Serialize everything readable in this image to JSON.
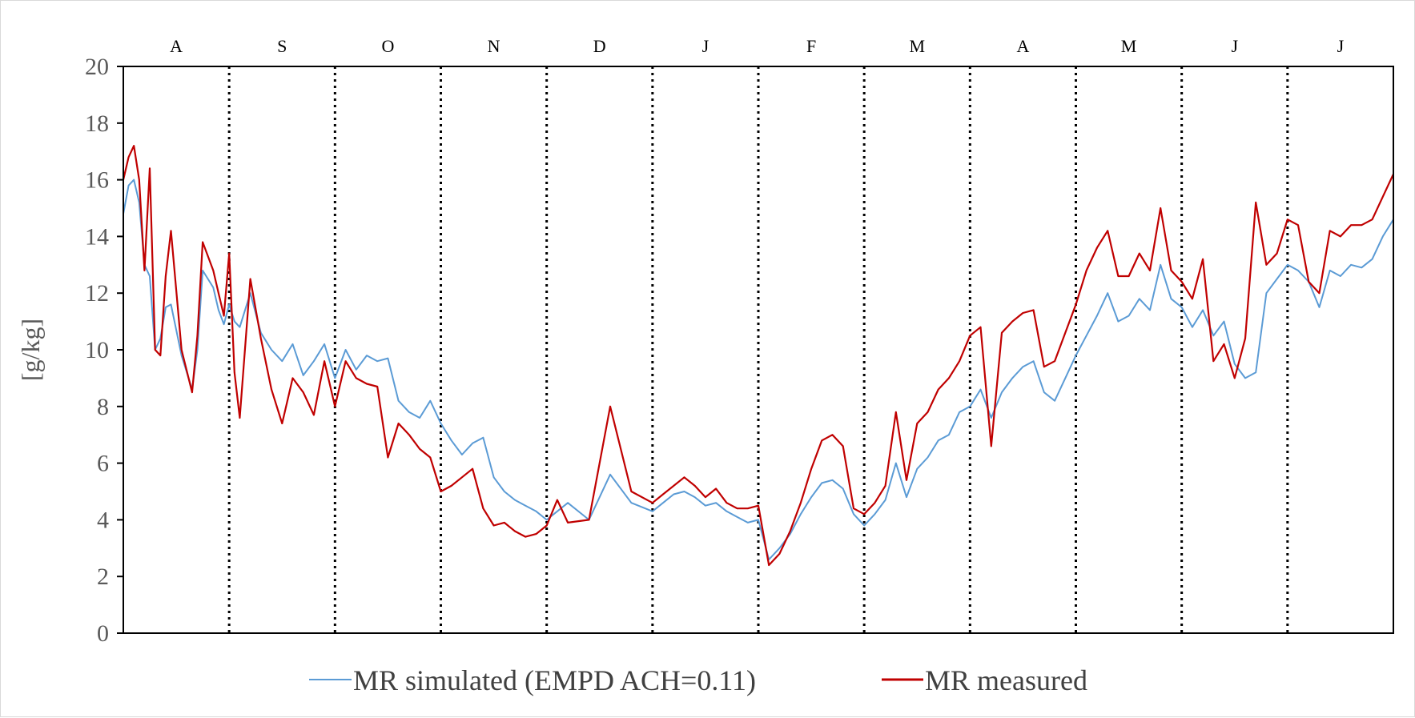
{
  "chart_data": {
    "type": "line",
    "ylabel": "[g/kg]",
    "xlabel": "",
    "ylim": [
      0,
      20
    ],
    "yticks": [
      "0",
      "2",
      "4",
      "6",
      "8",
      "10",
      "12",
      "14",
      "16",
      "18",
      "20"
    ],
    "months": [
      "A",
      "S",
      "O",
      "N",
      "D",
      "J",
      "F",
      "M",
      "A",
      "M",
      "J",
      "J"
    ],
    "x_units": "month index (0 = start of first month, 12 = end of last month)",
    "month_boundaries": [
      1,
      2,
      3,
      4,
      5,
      6,
      7,
      8,
      9,
      10,
      11
    ],
    "grid": false,
    "legend_position": "bottom",
    "series": [
      {
        "name": "MR simulated (EMPD ACH=0.11)",
        "color": "#5b9bd5",
        "x": [
          0,
          0.05,
          0.1,
          0.15,
          0.2,
          0.25,
          0.3,
          0.35,
          0.4,
          0.45,
          0.55,
          0.65,
          0.7,
          0.75,
          0.85,
          0.9,
          0.95,
          1.0,
          1.05,
          1.1,
          1.2,
          1.3,
          1.4,
          1.5,
          1.6,
          1.7,
          1.8,
          1.9,
          2.0,
          2.1,
          2.2,
          2.3,
          2.4,
          2.5,
          2.6,
          2.7,
          2.8,
          2.9,
          3.0,
          3.1,
          3.2,
          3.3,
          3.4,
          3.5,
          3.6,
          3.7,
          3.8,
          3.9,
          4.0,
          4.1,
          4.2,
          4.4,
          4.6,
          4.8,
          5.0,
          5.1,
          5.2,
          5.3,
          5.4,
          5.5,
          5.6,
          5.7,
          5.8,
          5.9,
          6.0,
          6.1,
          6.2,
          6.3,
          6.4,
          6.5,
          6.6,
          6.7,
          6.8,
          6.9,
          7.0,
          7.1,
          7.2,
          7.3,
          7.4,
          7.5,
          7.6,
          7.7,
          7.8,
          7.9,
          8.0,
          8.1,
          8.2,
          8.3,
          8.4,
          8.5,
          8.6,
          8.7,
          8.8,
          8.9,
          9.0,
          9.1,
          9.2,
          9.3,
          9.4,
          9.5,
          9.6,
          9.7,
          9.8,
          9.9,
          10.0,
          10.1,
          10.2,
          10.3,
          10.4,
          10.5,
          10.6,
          10.7,
          10.8,
          10.9,
          11.0,
          11.1,
          11.2,
          11.3,
          11.4,
          11.5,
          11.6,
          11.7,
          11.8,
          11.9,
          12.0
        ],
        "values": [
          14.8,
          15.8,
          16.0,
          15.2,
          13.0,
          12.6,
          10.0,
          10.4,
          11.5,
          11.6,
          9.8,
          8.6,
          10.0,
          12.8,
          12.2,
          11.4,
          10.9,
          11.6,
          11.0,
          10.8,
          12.0,
          10.6,
          10.0,
          9.6,
          10.2,
          9.1,
          9.6,
          10.2,
          9.0,
          10.0,
          9.3,
          9.8,
          9.6,
          9.7,
          8.2,
          7.8,
          7.6,
          8.2,
          7.4,
          6.8,
          6.3,
          6.7,
          6.9,
          5.5,
          5.0,
          4.7,
          4.5,
          4.3,
          4.0,
          4.3,
          4.6,
          4.0,
          5.6,
          4.6,
          4.3,
          4.6,
          4.9,
          5.0,
          4.8,
          4.5,
          4.6,
          4.3,
          4.1,
          3.9,
          4.0,
          2.6,
          3.0,
          3.5,
          4.2,
          4.8,
          5.3,
          5.4,
          5.1,
          4.2,
          3.8,
          4.2,
          4.7,
          6.0,
          4.8,
          5.8,
          6.2,
          6.8,
          7.0,
          7.8,
          8.0,
          8.6,
          7.6,
          8.5,
          9.0,
          9.4,
          9.6,
          8.5,
          8.2,
          9.0,
          9.8,
          10.5,
          11.2,
          12.0,
          11.0,
          11.2,
          11.8,
          11.4,
          13.0,
          11.8,
          11.5,
          10.8,
          11.4,
          10.5,
          11.0,
          9.5,
          9.0,
          9.2,
          12.0,
          12.5,
          13.0,
          12.8,
          12.4,
          11.5,
          12.8,
          12.6,
          13.0,
          12.9,
          13.2,
          14.0,
          14.6
        ]
      },
      {
        "name": "MR measured",
        "color": "#c00000",
        "x": [
          0,
          0.05,
          0.1,
          0.15,
          0.2,
          0.25,
          0.3,
          0.35,
          0.4,
          0.45,
          0.55,
          0.65,
          0.7,
          0.75,
          0.85,
          0.9,
          0.95,
          1.0,
          1.05,
          1.1,
          1.2,
          1.3,
          1.4,
          1.5,
          1.6,
          1.7,
          1.8,
          1.9,
          2.0,
          2.1,
          2.2,
          2.3,
          2.4,
          2.5,
          2.6,
          2.7,
          2.8,
          2.9,
          3.0,
          3.1,
          3.2,
          3.3,
          3.4,
          3.5,
          3.6,
          3.7,
          3.8,
          3.9,
          4.0,
          4.1,
          4.2,
          4.4,
          4.6,
          4.8,
          5.0,
          5.1,
          5.2,
          5.3,
          5.4,
          5.5,
          5.6,
          5.7,
          5.8,
          5.9,
          6.0,
          6.1,
          6.2,
          6.3,
          6.4,
          6.5,
          6.6,
          6.7,
          6.8,
          6.9,
          7.0,
          7.1,
          7.2,
          7.3,
          7.4,
          7.5,
          7.6,
          7.7,
          7.8,
          7.9,
          8.0,
          8.1,
          8.2,
          8.3,
          8.4,
          8.5,
          8.6,
          8.7,
          8.8,
          8.9,
          9.0,
          9.1,
          9.2,
          9.3,
          9.4,
          9.5,
          9.6,
          9.7,
          9.8,
          9.9,
          10.0,
          10.1,
          10.2,
          10.3,
          10.4,
          10.5,
          10.6,
          10.7,
          10.8,
          10.9,
          11.0,
          11.1,
          11.2,
          11.3,
          11.4,
          11.5,
          11.6,
          11.7,
          11.8,
          11.9,
          12.0
        ],
        "values": [
          16.0,
          16.8,
          17.2,
          16.0,
          12.8,
          16.4,
          10.0,
          9.8,
          12.6,
          14.2,
          10.0,
          8.5,
          10.5,
          13.8,
          12.8,
          12.0,
          11.2,
          13.4,
          9.2,
          7.6,
          12.5,
          10.4,
          8.6,
          7.4,
          9.0,
          8.5,
          7.7,
          9.6,
          8.0,
          9.6,
          9.0,
          8.8,
          8.7,
          6.2,
          7.4,
          7.0,
          6.5,
          6.2,
          5.0,
          5.2,
          5.5,
          5.8,
          4.4,
          3.8,
          3.9,
          3.6,
          3.4,
          3.5,
          3.8,
          4.7,
          3.9,
          4.0,
          8.0,
          5.0,
          4.6,
          4.9,
          5.2,
          5.5,
          5.2,
          4.8,
          5.1,
          4.6,
          4.4,
          4.4,
          4.5,
          2.4,
          2.8,
          3.6,
          4.6,
          5.8,
          6.8,
          7.0,
          6.6,
          4.4,
          4.2,
          4.6,
          5.2,
          7.8,
          5.4,
          7.4,
          7.8,
          8.6,
          9.0,
          9.6,
          10.5,
          10.8,
          6.6,
          10.6,
          11.0,
          11.3,
          11.4,
          9.4,
          9.6,
          10.6,
          11.6,
          12.8,
          13.6,
          14.2,
          12.6,
          12.6,
          13.4,
          12.8,
          15.0,
          12.8,
          12.4,
          11.8,
          13.2,
          9.6,
          10.2,
          9.0,
          10.4,
          15.2,
          13.0,
          13.4,
          14.6,
          14.4,
          12.4,
          12.0,
          14.2,
          14.0,
          14.4,
          14.4,
          14.6,
          15.4,
          16.2
        ]
      }
    ]
  }
}
